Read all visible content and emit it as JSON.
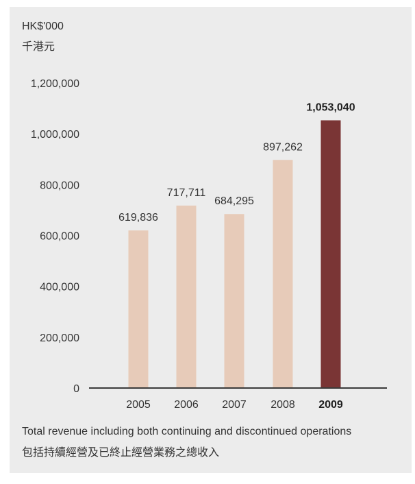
{
  "unit_label": "HK$'000",
  "unit_label_zh": "千港元",
  "caption": "Total revenue including both continuing and discontinued operations",
  "caption_zh": "包括持續經營及已終止經營業務之總收入",
  "colors": {
    "panel_background": "#ececec",
    "bar": "#e7cbb9",
    "bar_highlight": "#7a3535"
  },
  "chart_data": {
    "type": "bar",
    "categories": [
      "2005",
      "2006",
      "2007",
      "2008",
      "2009"
    ],
    "values": [
      619836,
      717711,
      684295,
      897262,
      1053040
    ],
    "data_labels": [
      "619,836",
      "717,711",
      "684,295",
      "897,262",
      "1,053,040"
    ],
    "highlight": "2009",
    "y_ticks": [
      0,
      200000,
      400000,
      600000,
      800000,
      1000000,
      1200000
    ],
    "y_tick_labels": [
      "0",
      "200,000",
      "400,000",
      "600,000",
      "800,000",
      "1,000,000",
      "1,200,000"
    ],
    "ylim": [
      0,
      1200000
    ],
    "grid": false
  }
}
